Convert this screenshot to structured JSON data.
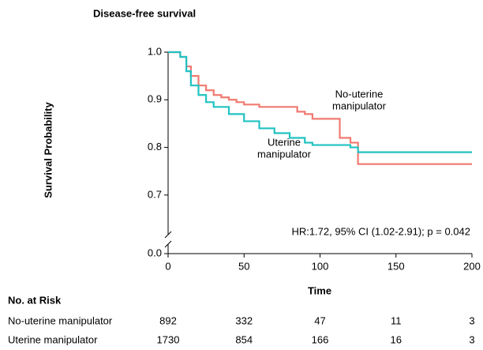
{
  "chart_data": {
    "type": "line",
    "step": true,
    "title": "Disease-free survival",
    "y_label": "Survival Probability",
    "x_label": "Time",
    "xlim": [
      0,
      200
    ],
    "xticks": [
      0,
      50,
      100,
      150,
      200
    ],
    "ylim": [
      0,
      1.0
    ],
    "axis_break": [
      0,
      0.65
    ],
    "yticks": [
      {
        "value": 0,
        "label": "0.0"
      },
      {
        "value": 0.7,
        "label": "0.7"
      },
      {
        "value": 0.8,
        "label": "0.8"
      },
      {
        "value": 0.9,
        "label": "0.9"
      },
      {
        "value": 1,
        "label": "1.0"
      }
    ],
    "series": [
      {
        "name": "No-uterine manipulator",
        "color": "#f07a70",
        "x": [
          0,
          5,
          8,
          12,
          15,
          20,
          25,
          30,
          35,
          40,
          45,
          50,
          60,
          80,
          85,
          90,
          95,
          110,
          113,
          120,
          125,
          200
        ],
        "values": [
          1,
          1,
          0.99,
          0.97,
          0.95,
          0.93,
          0.92,
          0.91,
          0.905,
          0.9,
          0.895,
          0.89,
          0.885,
          0.885,
          0.875,
          0.87,
          0.86,
          0.86,
          0.82,
          0.81,
          0.765,
          0.765
        ]
      },
      {
        "name": "Uterine manipulator",
        "color": "#22c2c2",
        "x": [
          0,
          5,
          8,
          12,
          15,
          20,
          25,
          30,
          40,
          50,
          60,
          70,
          80,
          90,
          95,
          120,
          125,
          200
        ],
        "values": [
          1,
          1,
          0.99,
          0.96,
          0.93,
          0.91,
          0.895,
          0.885,
          0.87,
          0.855,
          0.84,
          0.83,
          0.82,
          0.81,
          0.805,
          0.8,
          0.79,
          0.79
        ]
      }
    ],
    "annotations": [
      {
        "lines": [
          "No-uterine",
          "manipulator"
        ]
      },
      {
        "lines": [
          "Uterine",
          "manipulator"
        ]
      },
      {
        "lines": [
          "HR:1.72, 95% CI (1.02-2.91); p = 0.042"
        ]
      }
    ],
    "risk_table": {
      "title": "No. at Risk",
      "rows": [
        {
          "name": "No-uterine manipulator",
          "values": [
            892,
            332,
            47,
            11,
            3
          ]
        },
        {
          "name": "Uterine manipulator",
          "values": [
            1730,
            854,
            166,
            16,
            3
          ]
        }
      ]
    }
  }
}
